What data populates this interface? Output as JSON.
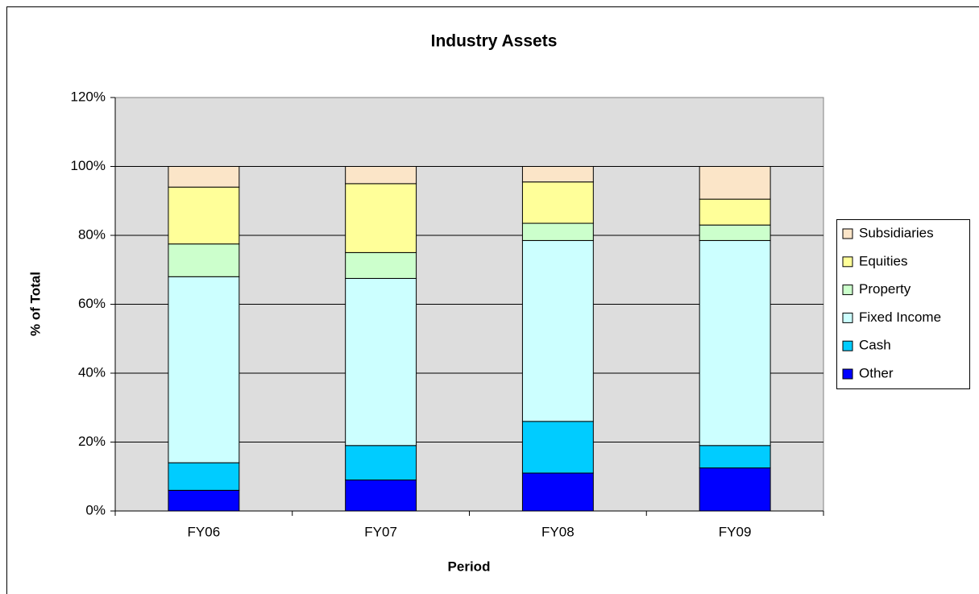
{
  "chart_data": {
    "type": "stacked_bar",
    "title": "Industry Assets",
    "x_label": "Period",
    "y_label": "% of Total",
    "categories": [
      "FY06",
      "FY07",
      "FY08",
      "FY09"
    ],
    "series": [
      {
        "name": "Other",
        "color": "#0000ff",
        "values": [
          6,
          9,
          11,
          12.5
        ]
      },
      {
        "name": "Cash",
        "color": "#00ccff",
        "values": [
          8,
          10,
          15,
          6.5
        ]
      },
      {
        "name": "Fixed Income",
        "color": "#ccffff",
        "values": [
          54,
          48.5,
          52.5,
          59.5
        ]
      },
      {
        "name": "Property",
        "color": "#ccffcc",
        "values": [
          9.5,
          7.5,
          5,
          4.5
        ]
      },
      {
        "name": "Equities",
        "color": "#ffff99",
        "values": [
          16.5,
          20,
          12,
          7.5
        ]
      },
      {
        "name": "Subsidiaries",
        "color": "#fbe5c8",
        "values": [
          6,
          5,
          4.5,
          9.5
        ]
      }
    ],
    "ylim": [
      0,
      120
    ],
    "yticks": [
      {
        "value": 0,
        "label": "0%"
      },
      {
        "value": 20,
        "label": "20%"
      },
      {
        "value": 40,
        "label": "40%"
      },
      {
        "value": 60,
        "label": "60%"
      },
      {
        "value": 80,
        "label": "80%"
      },
      {
        "value": 100,
        "label": "100%"
      },
      {
        "value": 120,
        "label": "120%"
      }
    ],
    "grid": true,
    "legend": "right"
  }
}
